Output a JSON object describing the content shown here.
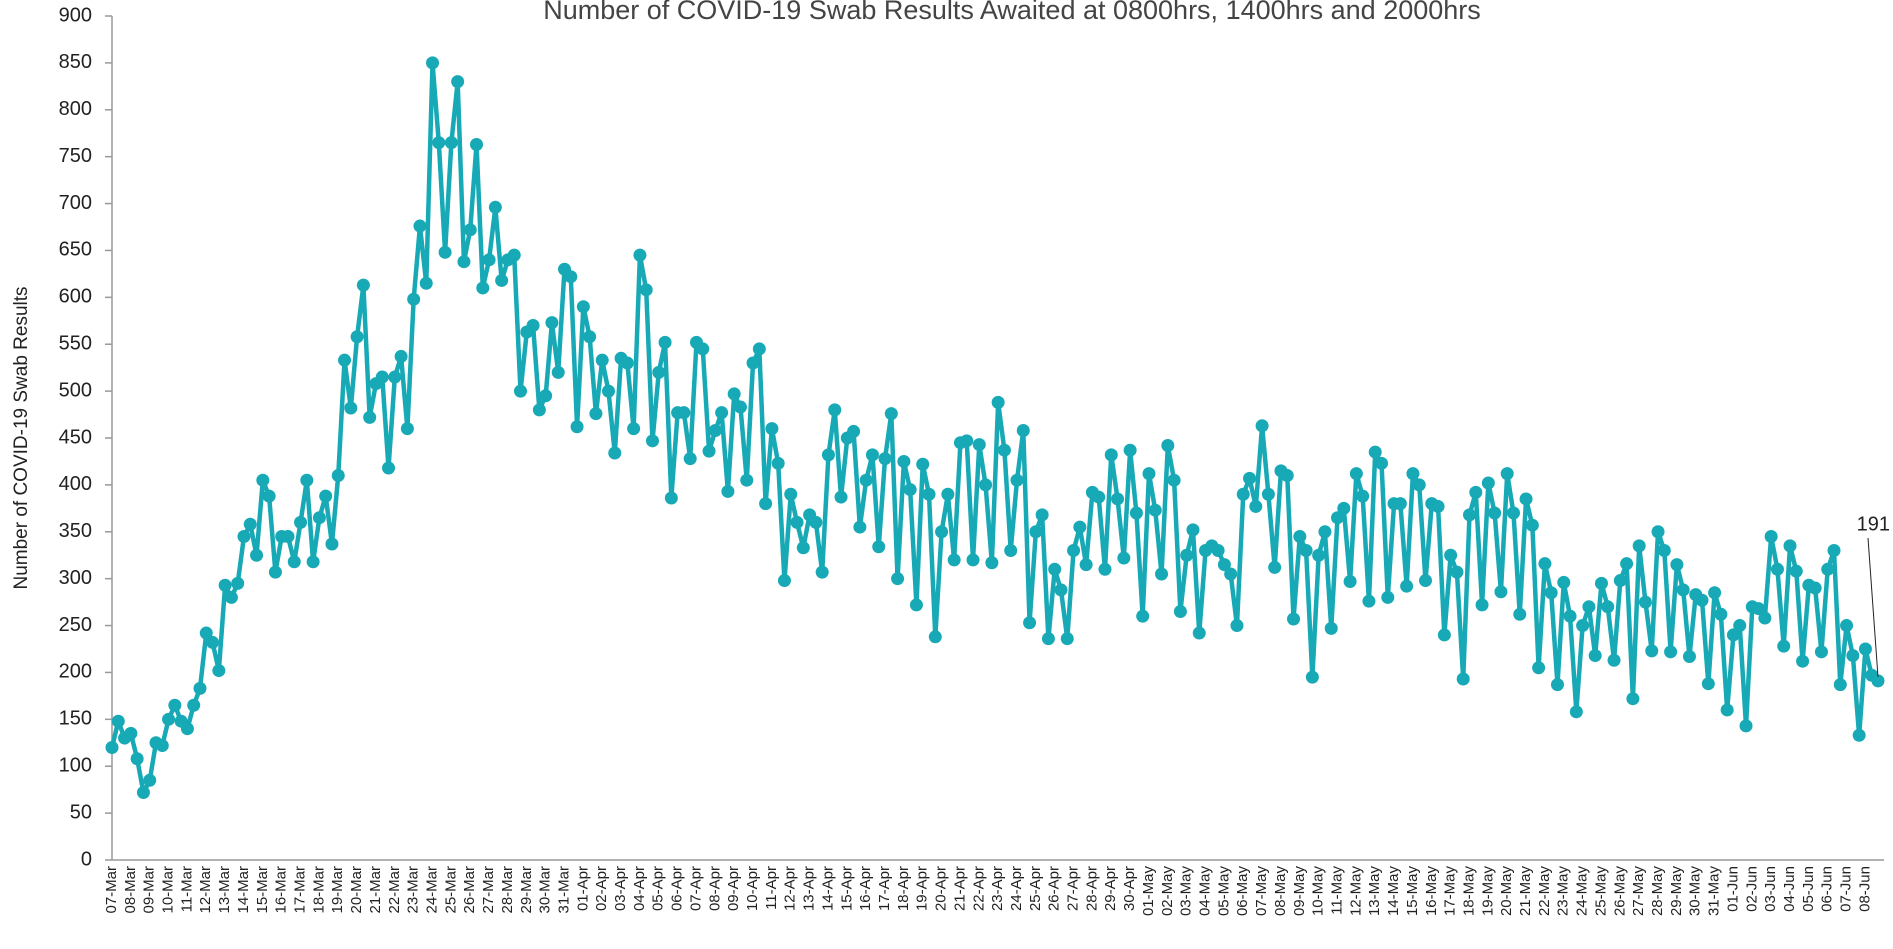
{
  "chart_data": {
    "type": "line",
    "title": "Number of COVID-19 Swab Results Awaited at 0800hrs, 1400hrs and 2000hrs",
    "y_label": "Number of COVID-19 Swab Results",
    "ylim": [
      0,
      900
    ],
    "yticks": [
      0,
      50,
      100,
      150,
      200,
      250,
      300,
      350,
      400,
      450,
      500,
      550,
      600,
      650,
      700,
      750,
      800,
      850,
      900
    ],
    "grid": false,
    "categories": [
      "07-Mar",
      null,
      null,
      "08-Mar",
      null,
      null,
      "09-Mar",
      null,
      null,
      "10-Mar",
      null,
      null,
      "11-Mar",
      null,
      null,
      "12-Mar",
      null,
      null,
      "13-Mar",
      null,
      null,
      "14-Mar",
      null,
      null,
      "15-Mar",
      null,
      null,
      "16-Mar",
      null,
      null,
      "17-Mar",
      null,
      null,
      "18-Mar",
      null,
      null,
      "19-Mar",
      null,
      null,
      "20-Mar",
      null,
      null,
      "21-Mar",
      null,
      null,
      "22-Mar",
      null,
      null,
      "23-Mar",
      null,
      null,
      "24-Mar",
      null,
      null,
      "25-Mar",
      null,
      null,
      "26-Mar",
      null,
      null,
      "27-Mar",
      null,
      null,
      "28-Mar",
      null,
      null,
      "29-Mar",
      null,
      null,
      "30-Mar",
      null,
      null,
      "31-Mar",
      null,
      null,
      "01-Apr",
      null,
      null,
      "02-Apr",
      null,
      null,
      "03-Apr",
      null,
      null,
      "04-Apr",
      null,
      null,
      "05-Apr",
      null,
      null,
      "06-Apr",
      null,
      null,
      "07-Apr",
      null,
      null,
      "08-Apr",
      null,
      null,
      "09-Apr",
      null,
      null,
      "10-Apr",
      null,
      null,
      "11-Apr",
      null,
      null,
      "12-Apr",
      null,
      null,
      "13-Apr",
      null,
      null,
      "14-Apr",
      null,
      null,
      "15-Apr",
      null,
      null,
      "16-Apr",
      null,
      null,
      "17-Apr",
      null,
      null,
      "18-Apr",
      null,
      null,
      "19-Apr",
      null,
      null,
      "20-Apr",
      null,
      null,
      "21-Apr",
      null,
      null,
      "22-Apr",
      null,
      null,
      "23-Apr",
      null,
      null,
      "24-Apr",
      null,
      null,
      "25-Apr",
      null,
      null,
      "26-Apr",
      null,
      null,
      "27-Apr",
      null,
      null,
      "28-Apr",
      null,
      null,
      "29-Apr",
      null,
      null,
      "30-Apr",
      null,
      null,
      "01-May",
      null,
      null,
      "02-May",
      null,
      null,
      "03-May",
      null,
      null,
      "04-May",
      null,
      null,
      "05-May",
      null,
      null,
      "06-May",
      null,
      null,
      "07-May",
      null,
      null,
      "08-May",
      null,
      null,
      "09-May",
      null,
      null,
      "10-May",
      null,
      null,
      "11-May",
      null,
      null,
      "12-May",
      null,
      null,
      "13-May",
      null,
      null,
      "14-May",
      null,
      null,
      "15-May",
      null,
      null,
      "16-May",
      null,
      null,
      "17-May",
      null,
      null,
      "18-May",
      null,
      null,
      "19-May",
      null,
      null,
      "20-May",
      null,
      null,
      "21-May",
      null,
      null,
      "22-May",
      null,
      null,
      "23-May",
      null,
      null,
      "24-May",
      null,
      null,
      "25-May",
      null,
      null,
      "26-May",
      null,
      null,
      "27-May",
      null,
      null,
      "28-May",
      null,
      null,
      "29-May",
      null,
      null,
      "30-May",
      null,
      null,
      "31-May",
      null,
      null,
      "01-Jun",
      null,
      null,
      "02-Jun",
      null,
      null,
      "03-Jun",
      null,
      null,
      "04-Jun",
      null,
      null,
      "05-Jun",
      null,
      null,
      "06-Jun",
      null,
      null,
      "07-Jun",
      null,
      null,
      "08-Jun",
      null,
      null
    ],
    "series": [
      {
        "color": "#17a9b5",
        "values": [
          120,
          148,
          130,
          135,
          108,
          72,
          85,
          125,
          122,
          150,
          165,
          148,
          140,
          165,
          183,
          242,
          232,
          202,
          293,
          280,
          295,
          345,
          358,
          325,
          405,
          388,
          307,
          345,
          345,
          318,
          360,
          405,
          318,
          365,
          388,
          337,
          410,
          533,
          482,
          558,
          613,
          472,
          508,
          515,
          418,
          515,
          537,
          460,
          598,
          676,
          615,
          850,
          765,
          648,
          765,
          830,
          638,
          672,
          763,
          610,
          640,
          696,
          618,
          640,
          645,
          500,
          563,
          570,
          480,
          495,
          573,
          520,
          630,
          622,
          462,
          590,
          558,
          476,
          533,
          500,
          434,
          535,
          530,
          460,
          645,
          608,
          447,
          520,
          552,
          386,
          477,
          477,
          428,
          552,
          545,
          436,
          458,
          477,
          393,
          497,
          483,
          405,
          530,
          545,
          380,
          460,
          423,
          298,
          390,
          360,
          333,
          368,
          360,
          307,
          432,
          480,
          387,
          450,
          457,
          355,
          405,
          432,
          334,
          428,
          476,
          300,
          425,
          395,
          272,
          422,
          390,
          238,
          350,
          390,
          320,
          445,
          447,
          320,
          443,
          400,
          317,
          488,
          437,
          330,
          405,
          458,
          253,
          350,
          368,
          236,
          310,
          288,
          236,
          330,
          355,
          315,
          392,
          387,
          310,
          432,
          385,
          322,
          437,
          370,
          260,
          412,
          373,
          305,
          442,
          405,
          265,
          325,
          352,
          242,
          330,
          335,
          330,
          315,
          305,
          250,
          390,
          407,
          377,
          463,
          390,
          312,
          415,
          410,
          257,
          345,
          330,
          195,
          325,
          350,
          247,
          365,
          375,
          297,
          412,
          388,
          276,
          435,
          423,
          280,
          380,
          380,
          292,
          412,
          400,
          298,
          380,
          377,
          240,
          325,
          307,
          193,
          368,
          392,
          272,
          402,
          370,
          286,
          412,
          370,
          262,
          385,
          357,
          205,
          316,
          285,
          187,
          296,
          260,
          158,
          250,
          270,
          218,
          295,
          270,
          213,
          298,
          316,
          172,
          335,
          275,
          223,
          350,
          330,
          222,
          315,
          288,
          217,
          283,
          277,
          188,
          285,
          262,
          160,
          240,
          250,
          143,
          270,
          268,
          258,
          345,
          310,
          228,
          335,
          308,
          212,
          293,
          290,
          222,
          310,
          330,
          187,
          250,
          218,
          133,
          225,
          197,
          191
        ]
      }
    ]
  }
}
